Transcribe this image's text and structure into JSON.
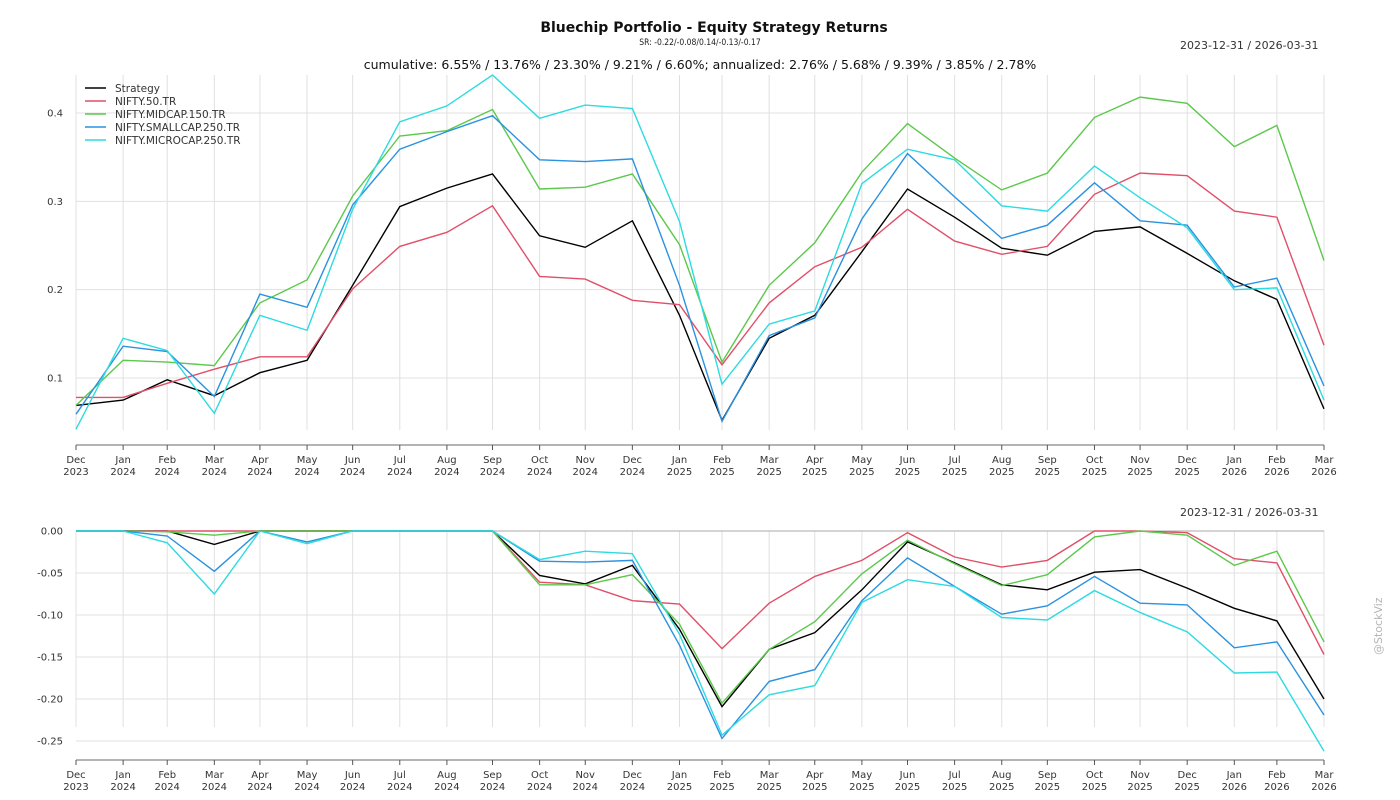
{
  "header": {
    "title": "Bluechip Portfolio - Equity Strategy Returns",
    "sr_line": "SR: -0.22/-0.08/0.14/-0.13/-0.17",
    "subtitle": "cumulative: 6.55% / 13.76% / 23.30% / 9.21% / 6.60%; annualized: 2.76% / 5.68% / 9.39% / 3.85% / 2.78%",
    "date_range_top": "2023-12-31 / 2026-03-31",
    "date_range_bottom": "2023-12-31 / 2026-03-31",
    "watermark": "@StockViz"
  },
  "chart_data": [
    {
      "type": "line",
      "name": "cumulative-returns",
      "title": "Bluechip Portfolio - Equity Strategy Returns",
      "xlabel": "",
      "ylabel": "",
      "ylim": [
        0.04,
        0.44
      ],
      "yticks": [
        0.1,
        0.2,
        0.3,
        0.4
      ],
      "ytick_labels": [
        "0.1",
        "0.2",
        "0.3",
        "0.4"
      ],
      "grid": true,
      "legend_position": "top-left",
      "x": [
        "2023-12-31",
        "2024-01-31",
        "2024-02-29",
        "2024-03-31",
        "2024-04-30",
        "2024-05-31",
        "2024-06-30",
        "2024-07-31",
        "2024-08-31",
        "2024-09-30",
        "2024-10-31",
        "2024-11-30",
        "2024-12-31",
        "2025-01-31",
        "2025-02-28",
        "2025-03-31",
        "2025-04-30",
        "2025-05-31",
        "2025-06-30",
        "2025-07-31",
        "2025-08-31",
        "2025-09-30",
        "2025-10-31",
        "2025-11-30",
        "2025-12-31",
        "2026-01-31",
        "2026-02-28",
        "2026-03-31"
      ],
      "x_tick_labels": [
        [
          "Dec",
          "2023"
        ],
        [
          "Jan",
          "2024"
        ],
        [
          "Feb",
          "2024"
        ],
        [
          "Mar",
          "2024"
        ],
        [
          "Apr",
          "2024"
        ],
        [
          "May",
          "2024"
        ],
        [
          "Jun",
          "2024"
        ],
        [
          "Jul",
          "2024"
        ],
        [
          "Aug",
          "2024"
        ],
        [
          "Sep",
          "2024"
        ],
        [
          "Oct",
          "2024"
        ],
        [
          "Nov",
          "2024"
        ],
        [
          "Dec",
          "2024"
        ],
        [
          "Jan",
          "2025"
        ],
        [
          "Feb",
          "2025"
        ],
        [
          "Mar",
          "2025"
        ],
        [
          "Apr",
          "2025"
        ],
        [
          "May",
          "2025"
        ],
        [
          "Jun",
          "2025"
        ],
        [
          "Jul",
          "2025"
        ],
        [
          "Aug",
          "2025"
        ],
        [
          "Sep",
          "2025"
        ],
        [
          "Oct",
          "2025"
        ],
        [
          "Nov",
          "2025"
        ],
        [
          "Dec",
          "2025"
        ],
        [
          "Jan",
          "2026"
        ],
        [
          "Feb",
          "2026"
        ],
        [
          "Mar",
          "2026"
        ]
      ],
      "series": [
        {
          "name": "Strategy",
          "color": "#000000",
          "values": [
            0.069,
            0.075,
            0.098,
            0.08,
            0.106,
            0.12,
            0.205,
            0.294,
            0.315,
            0.331,
            0.261,
            0.248,
            0.278,
            0.171,
            0.052,
            0.145,
            0.171,
            0.243,
            0.314,
            0.282,
            0.247,
            0.239,
            0.266,
            0.271,
            0.241,
            0.21,
            0.189,
            0.065
          ]
        },
        {
          "name": "NIFTY.50.TR",
          "color": "#e0506a",
          "values": [
            0.078,
            0.078,
            0.094,
            0.11,
            0.124,
            0.124,
            0.201,
            0.249,
            0.265,
            0.295,
            0.215,
            0.212,
            0.188,
            0.183,
            0.115,
            0.185,
            0.226,
            0.248,
            0.291,
            0.255,
            0.24,
            0.249,
            0.308,
            0.332,
            0.329,
            0.289,
            0.282,
            0.137
          ]
        },
        {
          "name": "NIFTY.MIDCAP.150.TR",
          "color": "#5cc84c",
          "values": [
            0.069,
            0.12,
            0.118,
            0.114,
            0.185,
            0.211,
            0.306,
            0.374,
            0.38,
            0.404,
            0.314,
            0.316,
            0.331,
            0.251,
            0.118,
            0.205,
            0.253,
            0.333,
            0.388,
            0.349,
            0.313,
            0.332,
            0.395,
            0.418,
            0.411,
            0.362,
            0.386,
            0.233
          ]
        },
        {
          "name": "NIFTY.SMALLCAP.250.TR",
          "color": "#2a92e0",
          "values": [
            0.059,
            0.136,
            0.13,
            0.079,
            0.195,
            0.18,
            0.296,
            0.359,
            0.379,
            0.397,
            0.347,
            0.345,
            0.348,
            0.205,
            0.051,
            0.148,
            0.168,
            0.28,
            0.354,
            0.305,
            0.258,
            0.273,
            0.321,
            0.278,
            0.273,
            0.203,
            0.213,
            0.091
          ]
        },
        {
          "name": "NIFTY.MICROCAP.250.TR",
          "color": "#2ddbe0",
          "values": [
            0.042,
            0.145,
            0.131,
            0.06,
            0.171,
            0.154,
            0.291,
            0.39,
            0.408,
            0.443,
            0.394,
            0.409,
            0.405,
            0.277,
            0.093,
            0.161,
            0.176,
            0.32,
            0.359,
            0.347,
            0.295,
            0.289,
            0.34,
            0.304,
            0.27,
            0.2,
            0.202,
            0.075
          ]
        }
      ]
    },
    {
      "type": "line",
      "name": "drawdowns",
      "title": "",
      "xlabel": "",
      "ylabel": "",
      "ylim": [
        -0.27,
        0.0
      ],
      "yticks": [
        0.0,
        -0.05,
        -0.1,
        -0.15,
        -0.2,
        -0.25
      ],
      "ytick_labels": [
        "0.00",
        "-0.05",
        "-0.10",
        "-0.15",
        "-0.20",
        "-0.25"
      ],
      "grid": true,
      "x": "same as cumulative-returns",
      "series": [
        {
          "name": "Strategy",
          "color": "#000000",
          "values": [
            0.0,
            0.0,
            0.0,
            -0.016,
            0.0,
            0.0,
            0.0,
            0.0,
            0.0,
            0.0,
            -0.053,
            -0.063,
            -0.041,
            -0.117,
            -0.209,
            -0.141,
            -0.121,
            -0.07,
            -0.013,
            -0.038,
            -0.064,
            -0.07,
            -0.049,
            -0.046,
            -0.068,
            -0.092,
            -0.107,
            -0.2
          ]
        },
        {
          "name": "NIFTY.50.TR",
          "color": "#e0506a",
          "values": [
            0.0,
            0.0,
            0.0,
            0.0,
            0.0,
            0.0,
            0.0,
            0.0,
            0.0,
            0.0,
            -0.061,
            -0.064,
            -0.083,
            -0.087,
            -0.14,
            -0.086,
            -0.054,
            -0.035,
            -0.002,
            -0.031,
            -0.043,
            -0.035,
            0.0,
            0.0,
            -0.002,
            -0.033,
            -0.038,
            -0.147
          ]
        },
        {
          "name": "NIFTY.MIDCAP.150.TR",
          "color": "#5cc84c",
          "values": [
            0.0,
            0.0,
            -0.001,
            -0.005,
            0.0,
            0.0,
            0.0,
            0.0,
            0.0,
            0.0,
            -0.064,
            -0.064,
            -0.052,
            -0.111,
            -0.205,
            -0.141,
            -0.108,
            -0.051,
            -0.011,
            -0.039,
            -0.065,
            -0.052,
            -0.007,
            0.0,
            -0.005,
            -0.041,
            -0.024,
            -0.132
          ]
        },
        {
          "name": "NIFTY.SMALLCAP.250.TR",
          "color": "#2a92e0",
          "values": [
            0.0,
            0.0,
            -0.006,
            -0.048,
            0.0,
            -0.013,
            0.0,
            0.0,
            0.0,
            0.0,
            -0.036,
            -0.037,
            -0.035,
            -0.136,
            -0.247,
            -0.179,
            -0.165,
            -0.083,
            -0.032,
            -0.066,
            -0.099,
            -0.089,
            -0.054,
            -0.086,
            -0.088,
            -0.139,
            -0.132,
            -0.219
          ]
        },
        {
          "name": "NIFTY.MICROCAP.250.TR",
          "color": "#2ddbe0",
          "values": [
            0.0,
            0.0,
            -0.014,
            -0.075,
            0.0,
            -0.015,
            0.0,
            0.0,
            0.0,
            0.0,
            -0.034,
            -0.024,
            -0.027,
            -0.123,
            -0.243,
            -0.195,
            -0.184,
            -0.085,
            -0.058,
            -0.066,
            -0.103,
            -0.106,
            -0.071,
            -0.097,
            -0.12,
            -0.169,
            -0.168,
            -0.262
          ]
        }
      ]
    }
  ]
}
